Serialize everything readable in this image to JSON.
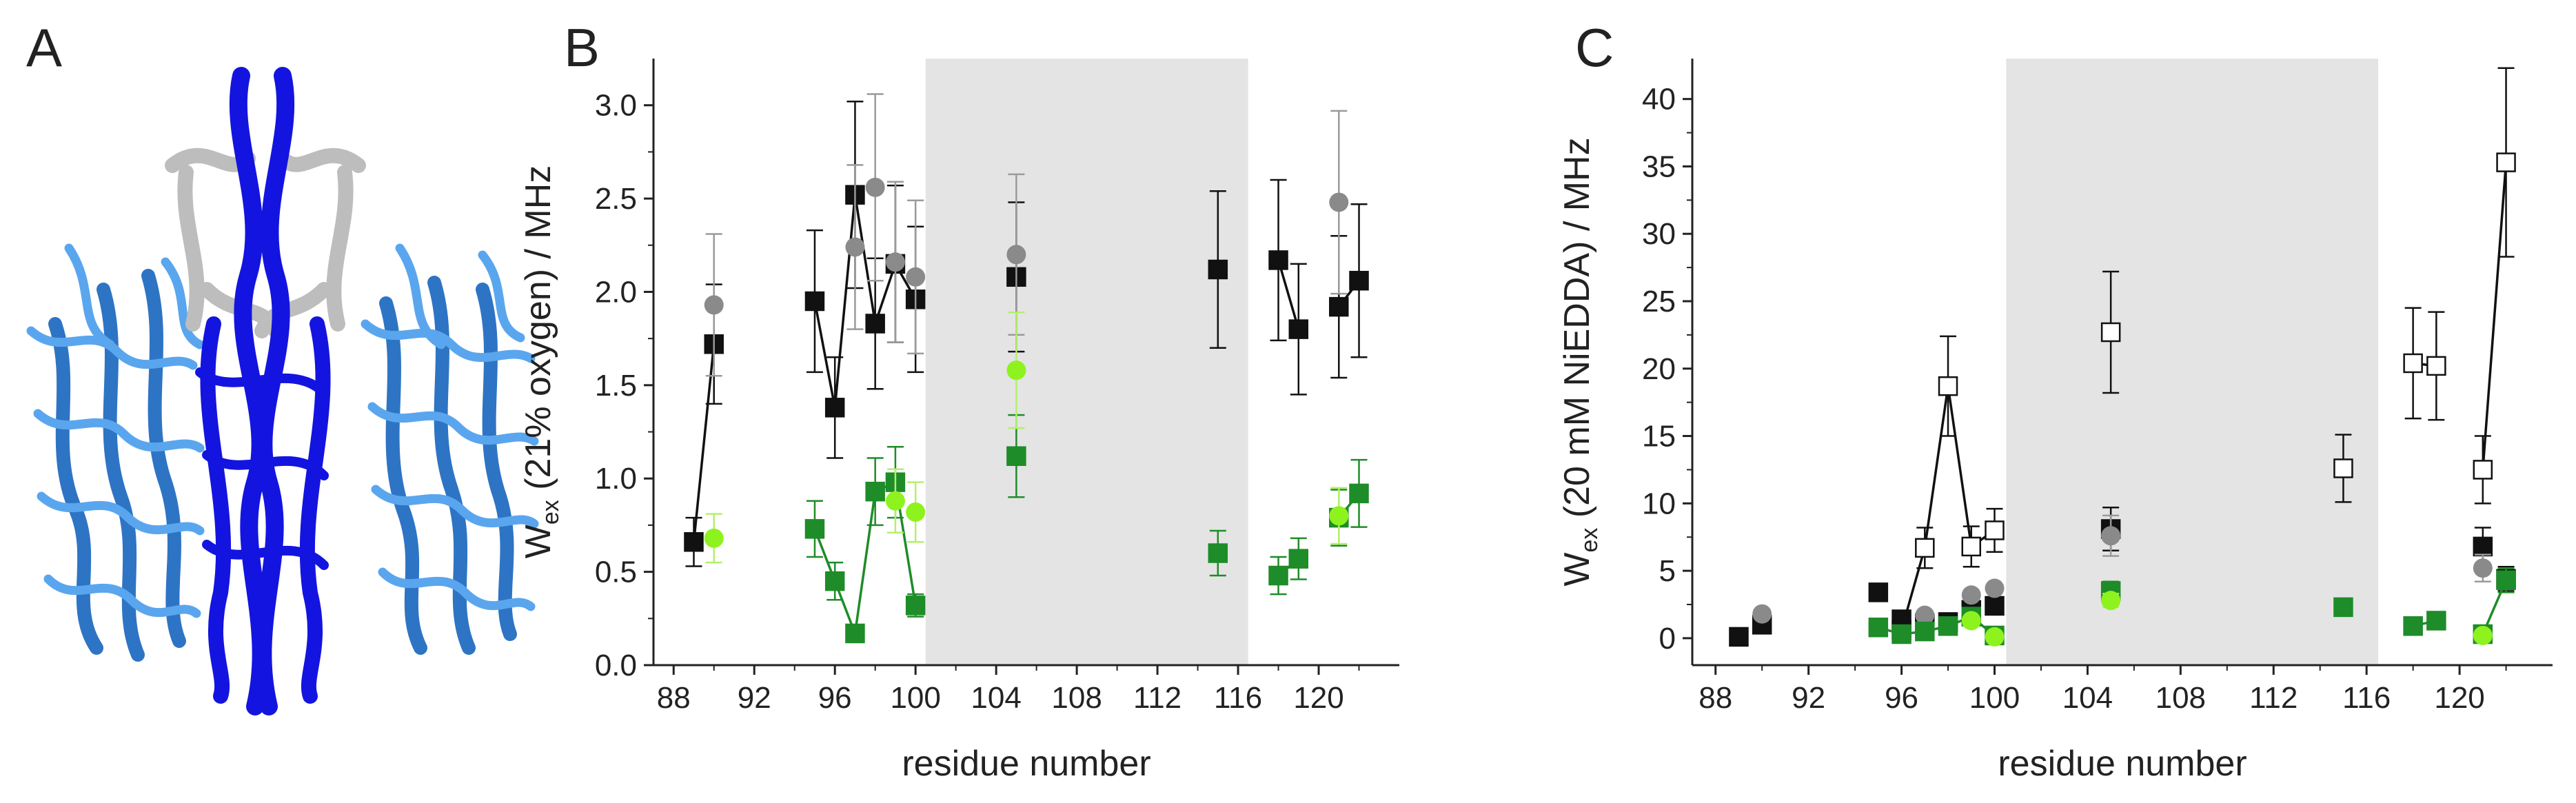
{
  "panels": {
    "a": {
      "label": "A"
    },
    "b": {
      "label": "B"
    },
    "c": {
      "label": "C"
    }
  },
  "colors": {
    "black": "#111111",
    "grey": "#8a8a8a",
    "green": "#1e8c28",
    "lightgreen": "#8ef21e",
    "open": "#ffffff",
    "shade": "#e4e4e4",
    "helix_core": "#1414e0",
    "helix_grey": "#c8c8c8",
    "helix_blue": "#3a8ee0"
  },
  "chart_data": [
    {
      "type": "scatter",
      "panel": "B",
      "xlabel": "residue number",
      "ylabel_main": "W",
      "ylabel_sub": "ex",
      "ylabel_rest": " (21% oxygen) / MHz",
      "xlim": [
        87,
        124
      ],
      "ylim": [
        0,
        3.25
      ],
      "xticks": [
        88,
        92,
        96,
        100,
        104,
        108,
        112,
        116,
        120
      ],
      "xtick_labels": [
        "88",
        "92",
        "96",
        "100",
        "104",
        "108",
        "112",
        "116",
        "120"
      ],
      "yticks": [
        0,
        0.5,
        1,
        1.5,
        2,
        2.5,
        3
      ],
      "ytick_labels": [
        "0.0",
        "0.5",
        "1.0",
        "1.5",
        "2.0",
        "2.5",
        "3.0"
      ],
      "shaded_region": [
        100.5,
        116.5
      ],
      "series": [
        {
          "name": "black squares",
          "marker": "square",
          "color": "black",
          "connect": true,
          "points": [
            [
              89,
              0.66,
              0.13
            ],
            [
              90,
              1.72,
              0.32
            ],
            [
              95,
              1.95,
              0.38
            ],
            [
              96,
              1.38,
              0.27
            ],
            [
              97,
              2.52,
              0.5
            ],
            [
              98,
              1.83,
              0.35
            ],
            [
              99,
              2.15,
              0.42
            ],
            [
              100,
              1.96,
              0.39
            ],
            [
              105,
              2.08,
              0.4
            ],
            [
              115,
              2.12,
              0.42
            ],
            [
              118,
              2.17,
              0.43
            ],
            [
              119,
              1.8,
              0.35
            ],
            [
              121,
              1.92,
              0.38
            ],
            [
              122,
              2.06,
              0.41
            ]
          ]
        },
        {
          "name": "grey circles",
          "marker": "circle",
          "color": "grey",
          "connect": false,
          "points": [
            [
              90,
              1.93,
              0.38
            ],
            [
              97,
              2.24,
              0.44
            ],
            [
              98,
              2.56,
              0.5
            ],
            [
              99,
              2.16,
              0.43
            ],
            [
              100,
              2.08,
              0.41
            ],
            [
              105,
              2.2,
              0.43
            ],
            [
              121,
              2.48,
              0.49
            ]
          ]
        },
        {
          "name": "green squares",
          "marker": "square",
          "color": "green",
          "connect": true,
          "points": [
            [
              95,
              0.73,
              0.15
            ],
            [
              96,
              0.45,
              0.1
            ],
            [
              97,
              0.17,
              0.04
            ],
            [
              98,
              0.93,
              0.18
            ],
            [
              99,
              0.98,
              0.19
            ],
            [
              100,
              0.32,
              0.06
            ],
            [
              105,
              1.12,
              0.22
            ],
            [
              115,
              0.6,
              0.12
            ],
            [
              118,
              0.48,
              0.1
            ],
            [
              119,
              0.57,
              0.11
            ],
            [
              121,
              0.79,
              0.15
            ],
            [
              122,
              0.92,
              0.18
            ]
          ]
        },
        {
          "name": "light green circles",
          "marker": "circle",
          "color": "lightgreen",
          "connect": false,
          "points": [
            [
              90,
              0.68,
              0.13
            ],
            [
              99,
              0.88,
              0.17
            ],
            [
              100,
              0.82,
              0.16
            ],
            [
              105,
              1.58,
              0.31
            ],
            [
              121,
              0.8,
              0.15
            ]
          ]
        }
      ]
    },
    {
      "type": "scatter",
      "panel": "C",
      "xlabel": "residue number",
      "ylabel_main": "W",
      "ylabel_sub": "ex",
      "ylabel_rest": " (20 mM NiEDDA) / MHz",
      "xlim": [
        87,
        124
      ],
      "ylim": [
        -2,
        43
      ],
      "xticks": [
        88,
        92,
        96,
        100,
        104,
        108,
        112,
        116,
        120
      ],
      "xtick_labels": [
        "88",
        "92",
        "96",
        "100",
        "104",
        "108",
        "112",
        "116",
        "120"
      ],
      "yticks": [
        0,
        5,
        10,
        15,
        20,
        25,
        30,
        35,
        40
      ],
      "ytick_labels": [
        "0",
        "5",
        "10",
        "15",
        "20",
        "25",
        "30",
        "35",
        "40"
      ],
      "shaded_region": [
        100.5,
        116.5
      ],
      "series": [
        {
          "name": "open squares",
          "marker": "square",
          "color": "open",
          "connect": true,
          "points": [
            [
              96,
              0.6,
              0.6
            ],
            [
              97,
              6.7,
              1.5
            ],
            [
              98,
              18.7,
              3.7
            ],
            [
              99,
              6.8,
              1.5
            ],
            [
              100,
              8.0,
              1.6
            ],
            [
              105,
              22.7,
              4.5
            ],
            [
              115,
              12.6,
              2.5
            ],
            [
              118,
              20.4,
              4.1
            ],
            [
              119,
              20.2,
              4.0
            ],
            [
              121,
              12.5,
              2.5
            ],
            [
              122,
              35.3,
              7.0
            ]
          ]
        },
        {
          "name": "black squares",
          "marker": "square",
          "color": "black",
          "connect": false,
          "points": [
            [
              89,
              0.1,
              0
            ],
            [
              90,
              1.0,
              0
            ],
            [
              95,
              3.4,
              0
            ],
            [
              96,
              1.4,
              0
            ],
            [
              97,
              1.1,
              0
            ],
            [
              98,
              1.2,
              0
            ],
            [
              99,
              2.1,
              0
            ],
            [
              100,
              2.4,
              0
            ],
            [
              105,
              8.1,
              1.6
            ],
            [
              121,
              6.8,
              1.4
            ],
            [
              122,
              4.4,
              0.9
            ]
          ]
        },
        {
          "name": "grey circles",
          "marker": "circle",
          "color": "grey",
          "connect": false,
          "points": [
            [
              90,
              1.8,
              0
            ],
            [
              97,
              1.7,
              0
            ],
            [
              99,
              3.2,
              0
            ],
            [
              100,
              3.7,
              0
            ],
            [
              105,
              7.6,
              1.5
            ],
            [
              121,
              5.2,
              1.0
            ]
          ]
        },
        {
          "name": "green squares",
          "marker": "square",
          "color": "green",
          "connect": true,
          "points": [
            [
              95,
              0.8,
              0
            ],
            [
              96,
              0.3,
              0
            ],
            [
              97,
              0.5,
              0
            ],
            [
              98,
              0.9,
              0
            ],
            [
              99,
              1.6,
              0
            ],
            [
              100,
              0.2,
              0
            ],
            [
              105,
              3.5,
              0.7
            ],
            [
              115,
              2.3,
              0
            ],
            [
              118,
              0.9,
              0
            ],
            [
              119,
              1.3,
              0
            ],
            [
              121,
              0.3,
              0
            ],
            [
              122,
              4.3,
              0.9
            ]
          ]
        },
        {
          "name": "light green circles",
          "marker": "circle",
          "color": "lightgreen",
          "connect": false,
          "points": [
            [
              99,
              1.3,
              0
            ],
            [
              100,
              0.1,
              0
            ],
            [
              105,
              2.8,
              0.5
            ],
            [
              121,
              0.2,
              0
            ]
          ]
        }
      ]
    }
  ]
}
